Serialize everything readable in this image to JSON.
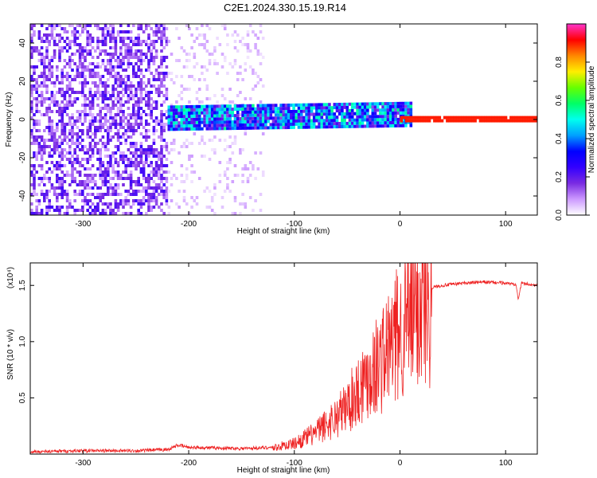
{
  "title": "C2E1.2024.330.15.19.R14",
  "chart_data": [
    {
      "type": "heatmap",
      "xlabel": "Height of straight line (km)",
      "ylabel": "Frequency (Hz)",
      "xlim": [
        -350,
        130
      ],
      "ylim": [
        -50,
        50
      ],
      "xticks": [
        -300,
        -200,
        -100,
        0,
        100
      ],
      "yticks": [
        -40,
        -20,
        0,
        20,
        40
      ],
      "colorbar": {
        "label": "Normalized spectral amplitude",
        "range": [
          0,
          1
        ],
        "ticks": [
          0.0,
          0.2,
          0.4,
          0.6,
          0.8
        ],
        "tick_labels": [
          "0.0",
          "0.2",
          "0.4",
          "0.6",
          "0.8"
        ],
        "colors": [
          "#ffffff",
          "#cc99ff",
          "#7a2be2",
          "#3300ff",
          "#0000ff",
          "#00a0ff",
          "#00ffee",
          "#00ff66",
          "#66ff00",
          "#ffee00",
          "#ff8800",
          "#ff0000",
          "#ff33cc"
        ]
      },
      "regions": [
        {
          "x_range": [
            -350,
            -220
          ],
          "freq_range": [
            -50,
            50
          ],
          "amplitude": 0.15,
          "desc": "broadband noise"
        },
        {
          "x_range": [
            -220,
            -130
          ],
          "freq_range": [
            -50,
            50
          ],
          "amplitude": 0.05,
          "desc": "sparse noise"
        },
        {
          "x_range": [
            -220,
            10
          ],
          "freq_center": [
            0,
            2
          ],
          "freq_halfwidth": 6,
          "amplitude": 0.35
        },
        {
          "x_range": [
            0,
            130
          ],
          "freq_center": 0,
          "freq_halfwidth": 1.5,
          "amplitude": 0.9,
          "desc": "carrier line"
        }
      ]
    },
    {
      "type": "line",
      "xlabel": "Height of straight line (km)",
      "ylabel": "SNR (10 * v/v)",
      "scale_label": "(x10⁴)",
      "xlim": [
        -350,
        130
      ],
      "ylim": [
        0,
        1.7
      ],
      "xticks": [
        -300,
        -200,
        -100,
        0,
        100
      ],
      "yticks": [
        0.5,
        1.0,
        1.5
      ],
      "ytick_labels": [
        "0.5",
        "1.0",
        "1.5"
      ],
      "series": [
        {
          "color": "#ee2222",
          "x": [
            -350,
            -300,
            -250,
            -220,
            -210,
            -200,
            -150,
            -120,
            -100,
            -80,
            -60,
            -50,
            -40,
            -30,
            -20,
            -10,
            0,
            10,
            20,
            30,
            40,
            60,
            80,
            100,
            110,
            112,
            115,
            130
          ],
          "y": [
            0.02,
            0.03,
            0.03,
            0.04,
            0.08,
            0.06,
            0.05,
            0.06,
            0.1,
            0.2,
            0.35,
            0.45,
            0.6,
            0.75,
            0.85,
            1.0,
            1.15,
            1.3,
            1.42,
            1.48,
            1.5,
            1.52,
            1.53,
            1.52,
            1.51,
            1.38,
            1.52,
            1.5
          ]
        }
      ]
    }
  ]
}
